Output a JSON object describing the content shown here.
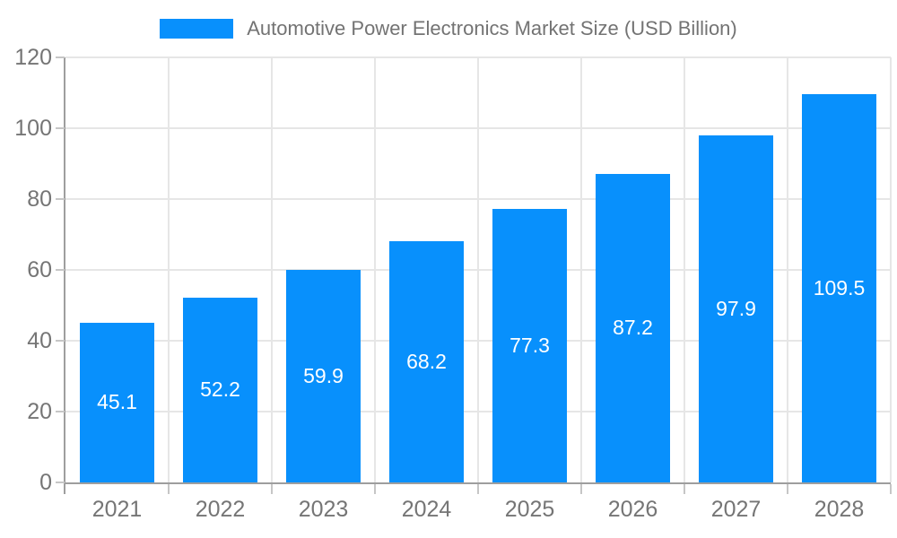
{
  "chart_data": {
    "type": "bar",
    "title": "Automotive Power Electronics Market Size (USD Billion)",
    "categories": [
      "2021",
      "2022",
      "2023",
      "2024",
      "2025",
      "2026",
      "2027",
      "2028"
    ],
    "values": [
      45.1,
      52.2,
      59.9,
      68.2,
      77.3,
      87.2,
      97.9,
      109.5
    ],
    "value_labels": [
      "45.1",
      "52.2",
      "59.9",
      "68.2",
      "77.3",
      "87.2",
      "97.9",
      "109.5"
    ],
    "xlabel": "",
    "ylabel": "",
    "ylim": [
      0,
      120
    ],
    "yticks": [
      0,
      20,
      40,
      60,
      80,
      100,
      120
    ],
    "grid": true,
    "legend_position": "top-center",
    "colors": {
      "bar": "#0890fc",
      "value_label": "#ffffff",
      "axis_text": "#757575",
      "legend_text": "#737373",
      "gridline": "#e6e6e6",
      "axis_line": "#9e9e9e",
      "tick": "#c6c6c6",
      "background": "#ffffff"
    }
  }
}
